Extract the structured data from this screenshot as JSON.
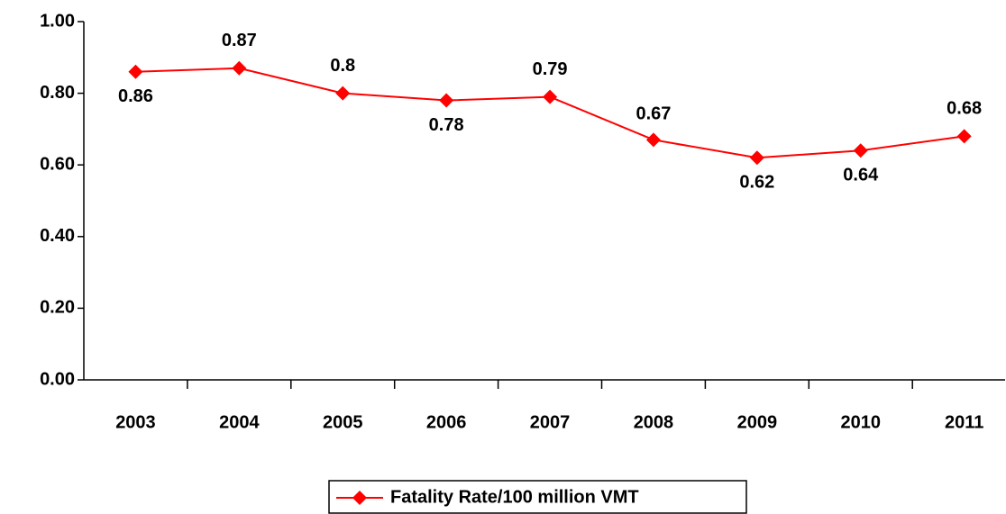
{
  "chart_data": {
    "type": "line",
    "categories": [
      "2003",
      "2004",
      "2005",
      "2006",
      "2007",
      "2008",
      "2009",
      "2010",
      "2011"
    ],
    "series": [
      {
        "name": "Fatality Rate/100 million VMT",
        "color": "#ff0000",
        "values": [
          0.86,
          0.87,
          0.8,
          0.78,
          0.79,
          0.67,
          0.62,
          0.64,
          0.68
        ]
      }
    ],
    "ylim": [
      0,
      1
    ],
    "yticks": [
      {
        "value": 0,
        "label": "0.00"
      },
      {
        "value": 0.2,
        "label": "0.20"
      },
      {
        "value": 0.4,
        "label": "0.40"
      },
      {
        "value": 0.6,
        "label": "0.60"
      },
      {
        "value": 0.8,
        "label": "0.80"
      },
      {
        "value": 1,
        "label": "1.00"
      }
    ],
    "grid": false,
    "legend": "bottom"
  }
}
